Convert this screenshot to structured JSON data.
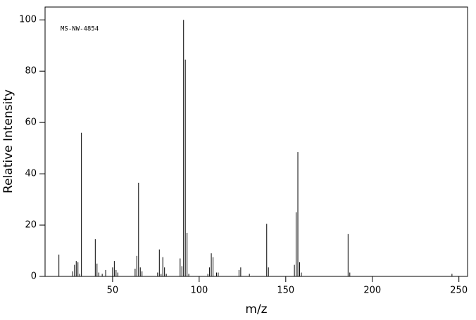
{
  "chart_data": {
    "type": "stem",
    "annotation": "MS-NW-4854",
    "x_label": "m/z",
    "y_label": "Relative Intensity",
    "color": "#000000",
    "x": [
      19,
      27,
      28,
      29,
      30,
      31,
      32,
      40,
      41,
      42,
      44,
      46,
      50,
      51,
      52,
      53,
      63,
      64,
      65,
      66,
      67,
      76,
      77,
      78,
      79,
      80,
      81,
      89,
      90,
      91,
      92,
      93,
      94,
      105,
      106,
      107,
      108,
      110,
      111,
      123,
      124,
      129,
      139,
      140,
      155,
      156,
      157,
      158,
      159,
      186,
      187,
      246
    ],
    "values": [
      8.5,
      2,
      4.5,
      6,
      5.5,
      1,
      56,
      14.5,
      5,
      1.5,
      1,
      2.5,
      3.5,
      6,
      2.5,
      1.5,
      3,
      8,
      36.5,
      3.5,
      2,
      1.5,
      10.5,
      1,
      7.5,
      3.5,
      1,
      7,
      4,
      100,
      84.5,
      17,
      1,
      1,
      3.5,
      9,
      7.5,
      1.5,
      1.5,
      2.5,
      3.5,
      1,
      20.5,
      3.5,
      4.5,
      25,
      48.5,
      5.5,
      1.5,
      16.5,
      1.5,
      1
    ],
    "xlim": [
      11,
      255
    ],
    "xticks": [
      50,
      100,
      150,
      200,
      250
    ],
    "ylim": [
      0,
      105
    ],
    "yticks": [
      0,
      20,
      40,
      60,
      80,
      100
    ]
  }
}
